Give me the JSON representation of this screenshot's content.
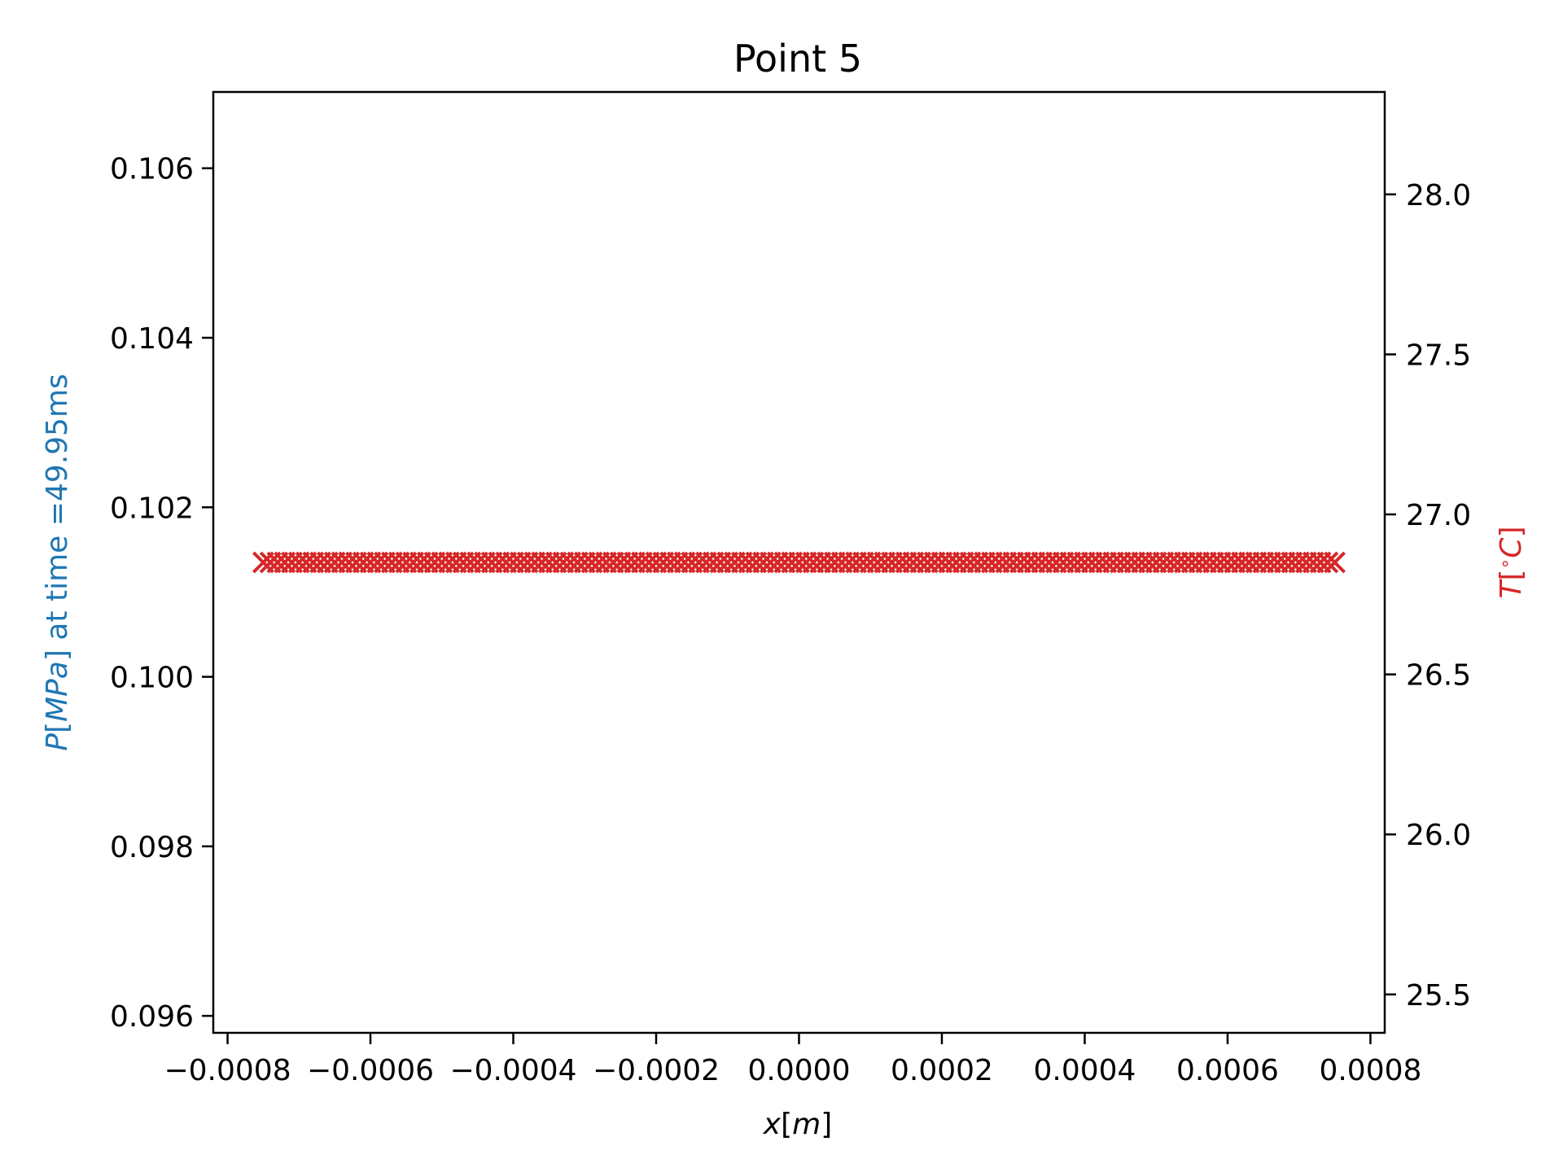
{
  "chart_data": {
    "type": "scatter",
    "title": "Point 5",
    "xlabel": {
      "var": "x",
      "unit": "m"
    },
    "ylabel_left": {
      "var": "P",
      "unit": "MPa",
      "suffix": " at time =49.95ms"
    },
    "ylabel_right": {
      "var": "T",
      "unit": "C"
    },
    "xlim": [
      -0.00082,
      0.00082
    ],
    "ylim_left": [
      0.0958,
      0.1069
    ],
    "ylim_right": [
      25.38,
      28.32
    ],
    "x_ticks": [
      "−0.0008",
      "−0.0006",
      "−0.0004",
      "−0.0002",
      "0.0000",
      "0.0002",
      "0.0004",
      "0.0006",
      "0.0008"
    ],
    "x_tick_values": [
      -0.0008,
      -0.0006,
      -0.0004,
      -0.0002,
      0.0,
      0.0002,
      0.0004,
      0.0006,
      0.0008
    ],
    "y_left_ticks": [
      "0.096",
      "0.098",
      "0.100",
      "0.102",
      "0.104",
      "0.106"
    ],
    "y_left_tick_values": [
      0.096,
      0.098,
      0.1,
      0.102,
      0.104,
      0.106
    ],
    "y_right_ticks": [
      "25.5",
      "26.0",
      "26.5",
      "27.0",
      "27.5",
      "28.0"
    ],
    "y_right_tick_values": [
      25.5,
      26.0,
      26.5,
      27.0,
      27.5,
      28.0
    ],
    "grid": false,
    "series": [
      {
        "axis": "right",
        "marker": "x",
        "color": "#d62728",
        "x_start": -0.00075,
        "x_end": 0.00075,
        "count": 151,
        "y": 26.85
      }
    ],
    "colors": {
      "left_label": "#1f77b4",
      "right_label": "#d62728"
    }
  }
}
